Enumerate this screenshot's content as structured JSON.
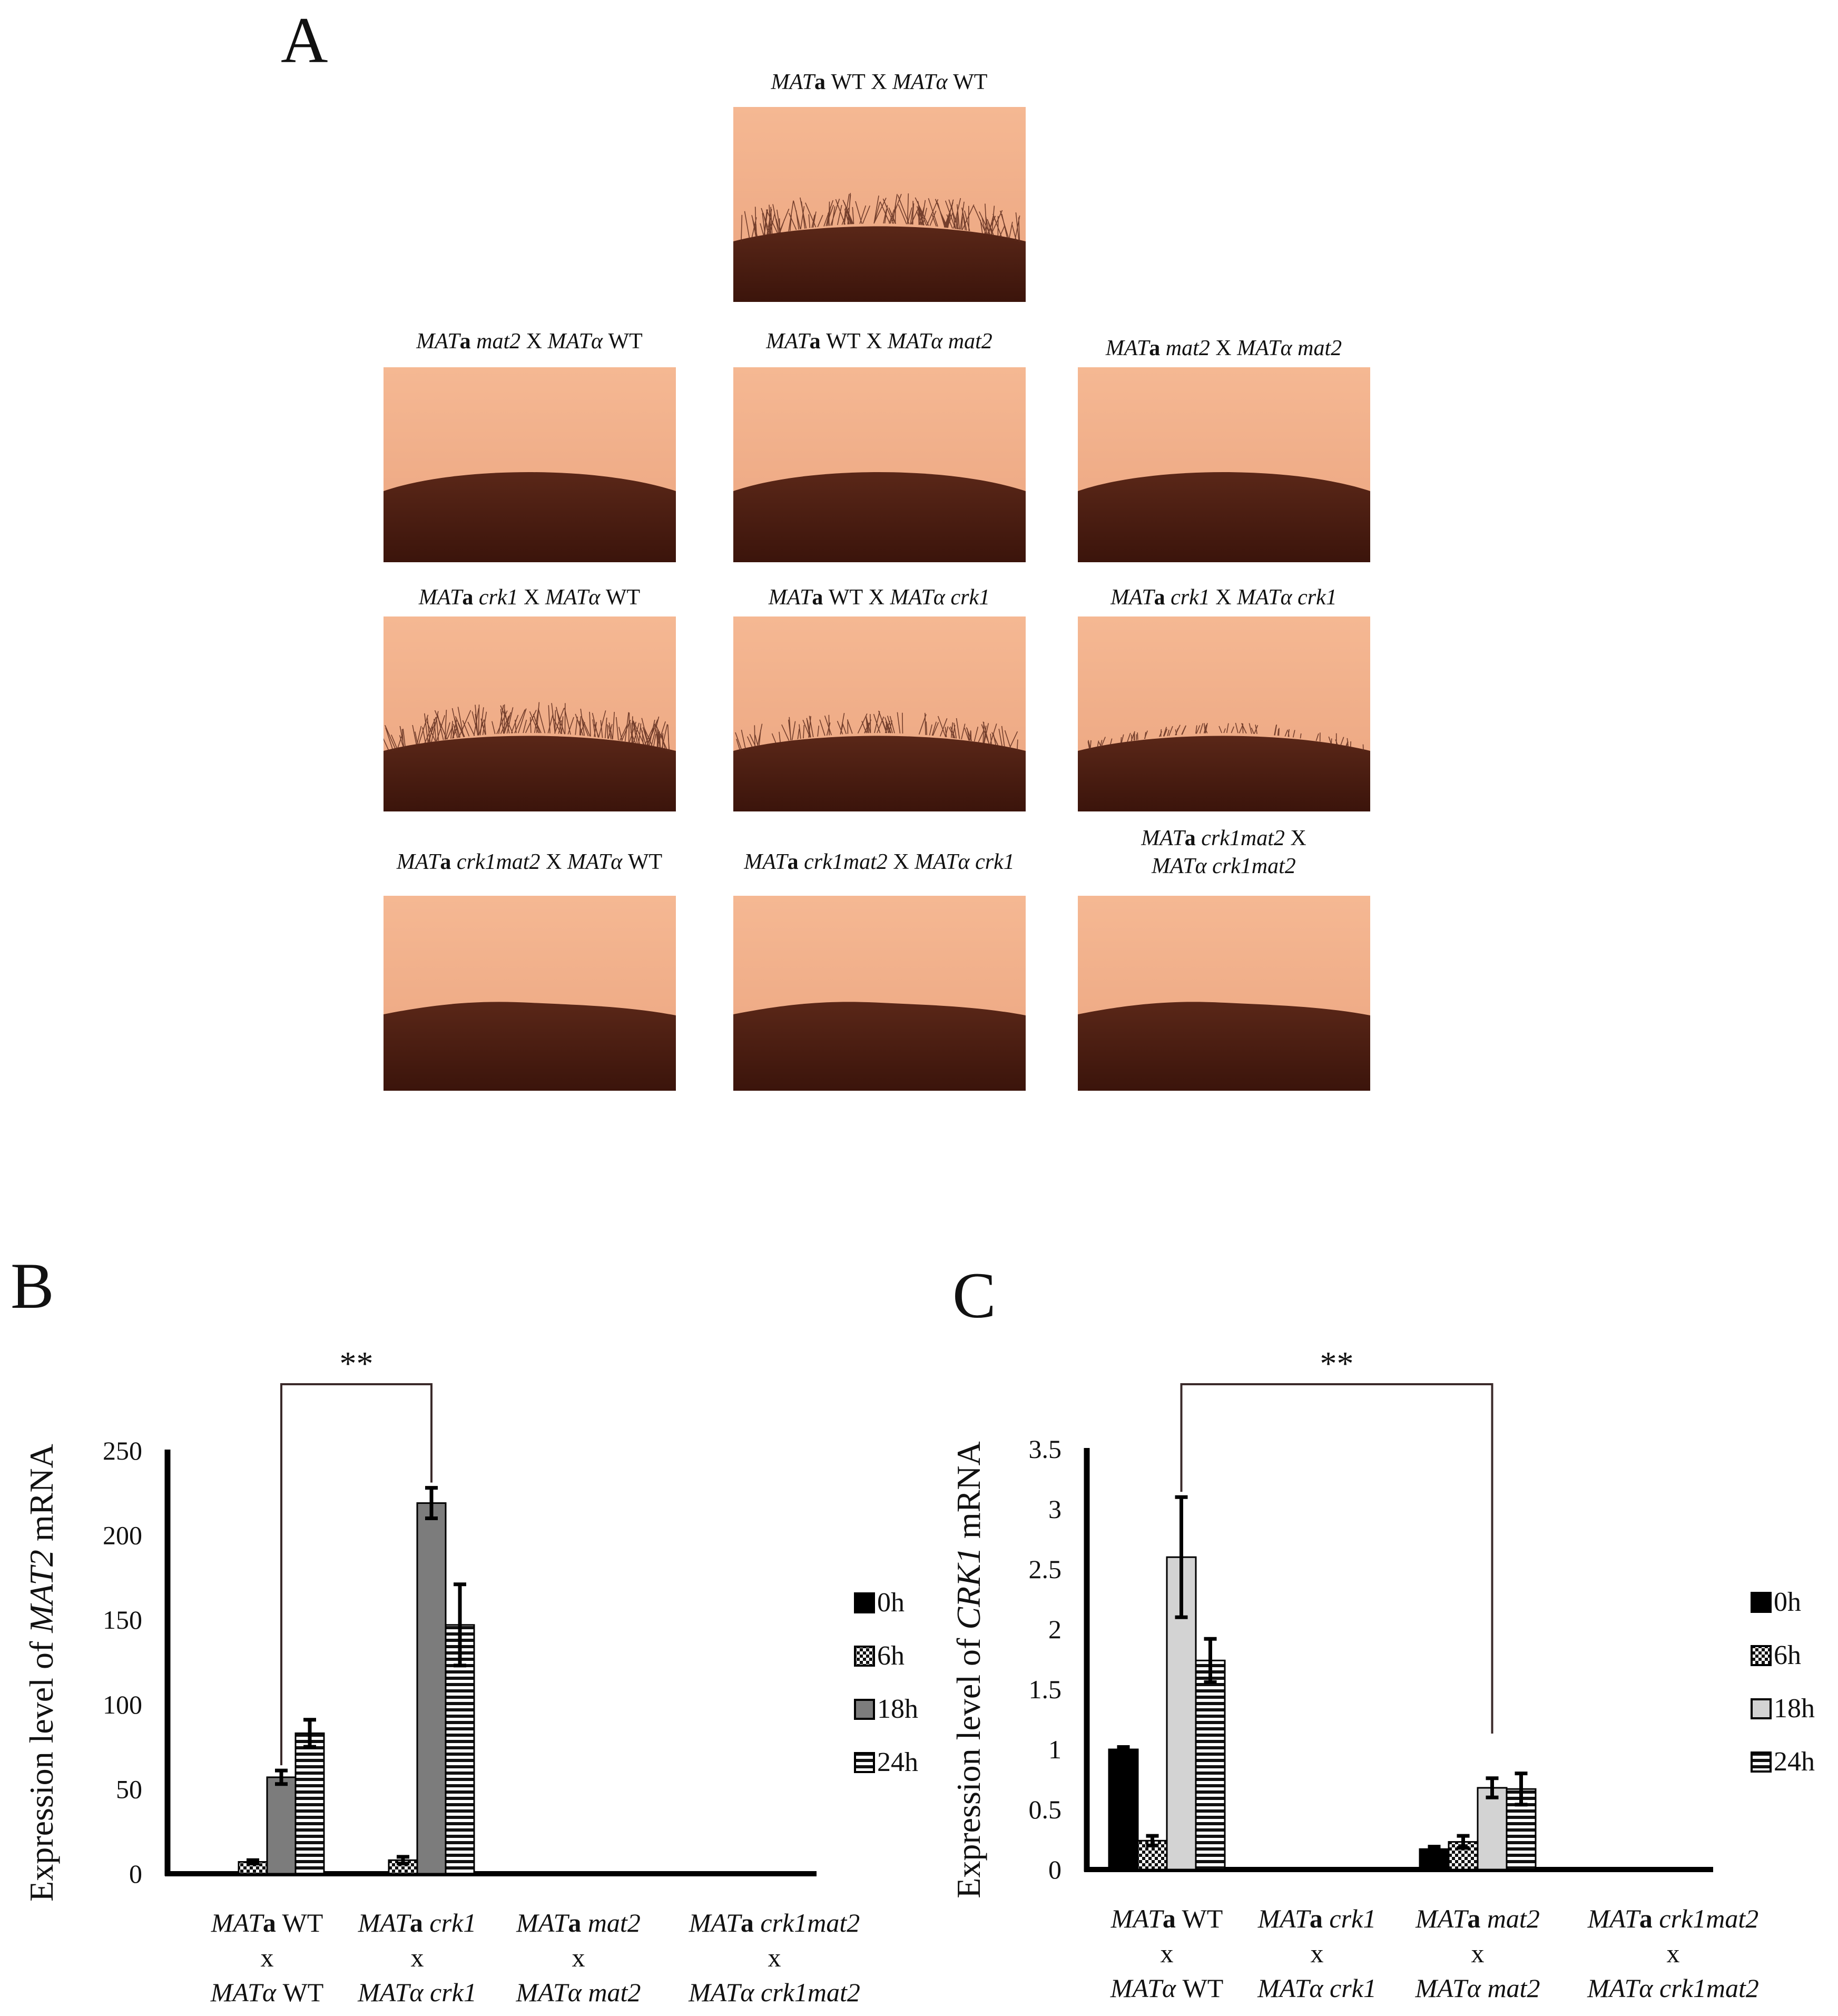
{
  "panel_a": {
    "letter": "A",
    "micrographs": [
      {
        "id": "wt-wt",
        "label": "MATa WT X MATα WT",
        "hyphae": true,
        "density": "high"
      },
      {
        "id": "mat2-wt",
        "label": "MATa mat2 X MATα WT",
        "hyphae": false
      },
      {
        "id": "wt-mat2",
        "label": "MATa WT X MATα mat2",
        "hyphae": false
      },
      {
        "id": "mat2-mat2",
        "label": "MATa mat2 X MATα mat2",
        "hyphae": false
      },
      {
        "id": "crk1-wt",
        "label": "MATa crk1 X MATα WT",
        "hyphae": true,
        "density": "high"
      },
      {
        "id": "wt-crk1",
        "label": "MATa WT X MATα crk1",
        "hyphae": true,
        "density": "medium"
      },
      {
        "id": "crk1-crk1",
        "label": "MATa crk1 X MATα crk1",
        "hyphae": true,
        "density": "low"
      },
      {
        "id": "crk1mat2-wt",
        "label": "MATa crk1mat2 X MATα WT",
        "hyphae": false
      },
      {
        "id": "crk1mat2-crk1",
        "label": "MATa crk1mat2 X MATα crk1",
        "hyphae": false
      },
      {
        "id": "crk1mat2-crk1mat2",
        "label": "MATa crk1mat2 X\nMATα crk1mat2",
        "hyphae": false
      }
    ]
  },
  "chart_data": [
    {
      "panel": "B",
      "type": "bar",
      "ylabel": "Expression level of MAT2 mRNA",
      "ylim": [
        0,
        250
      ],
      "yticks": [
        0,
        50,
        100,
        150,
        200,
        250
      ],
      "categories": [
        {
          "top": "MATa WT",
          "mid": "x",
          "bottom": "MATα WT"
        },
        {
          "top": "MATa crk1",
          "mid": "x",
          "bottom": "MATα crk1"
        },
        {
          "top": "MATa mat2",
          "mid": "x",
          "bottom": "MATα mat2"
        },
        {
          "top": "MATa crk1mat2",
          "mid": "x",
          "bottom": "MATα crk1mat2"
        }
      ],
      "series": [
        {
          "name": "0h",
          "values": [
            1,
            1,
            1,
            1
          ],
          "errors": [
            0,
            0,
            0,
            0
          ]
        },
        {
          "name": "6h",
          "values": [
            7,
            8,
            0,
            0
          ],
          "errors": [
            1,
            2,
            0,
            0
          ]
        },
        {
          "name": "18h",
          "values": [
            57,
            219,
            0,
            0
          ],
          "errors": [
            4,
            9,
            0,
            0
          ]
        },
        {
          "name": "24h",
          "values": [
            83,
            147,
            0,
            0
          ],
          "errors": [
            8,
            24,
            0,
            0
          ]
        }
      ],
      "significance": {
        "label": "**",
        "from_category": 0,
        "to_category": 1,
        "series": "18h"
      }
    },
    {
      "panel": "C",
      "type": "bar",
      "ylabel": "Expression level of CRK1 mRNA",
      "ylim": [
        0,
        3.5
      ],
      "yticks": [
        0,
        0.5,
        1,
        1.5,
        2,
        2.5,
        3,
        3.5
      ],
      "categories": [
        {
          "top": "MATa WT",
          "mid": "x",
          "bottom": "MATα WT"
        },
        {
          "top": "MATa crk1",
          "mid": "x",
          "bottom": "MATα crk1"
        },
        {
          "top": "MATa mat2",
          "mid": "x",
          "bottom": "MATα mat2"
        },
        {
          "top": "MATa crk1mat2",
          "mid": "x",
          "bottom": "MATα crk1mat2"
        }
      ],
      "series": [
        {
          "name": "0h",
          "values": [
            1.0,
            0,
            0.17,
            0
          ],
          "errors": [
            0.02,
            0,
            0.02,
            0
          ]
        },
        {
          "name": "6h",
          "values": [
            0.24,
            0,
            0.23,
            0
          ],
          "errors": [
            0.04,
            0,
            0.05,
            0
          ]
        },
        {
          "name": "18h",
          "values": [
            2.6,
            0,
            0.68,
            0
          ],
          "errors": [
            0.5,
            0,
            0.08,
            0
          ]
        },
        {
          "name": "24h",
          "values": [
            1.74,
            0,
            0.67,
            0
          ],
          "errors": [
            0.18,
            0,
            0.13,
            0
          ]
        }
      ],
      "significance": {
        "label": "**",
        "from_category": 0,
        "to_category": 2,
        "series": "18h"
      }
    }
  ]
}
